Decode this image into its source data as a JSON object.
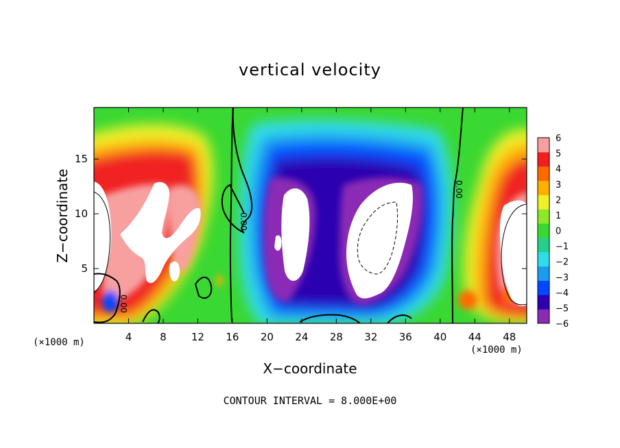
{
  "chart_data": {
    "type": "heatmap",
    "title": "vertical velocity",
    "xlabel": "X−coordinate",
    "ylabel": "Z−coordinate",
    "x_unit_label_left": "(×1000 m)",
    "x_unit_label_right": "(×1000 m)",
    "footer": "CONTOUR INTERVAL = 8.000E+00",
    "xlim": [
      0,
      50
    ],
    "ylim": [
      0,
      19.7
    ],
    "x_ticks": [
      4,
      8,
      12,
      16,
      20,
      24,
      28,
      32,
      36,
      40,
      44,
      48
    ],
    "y_ticks": [
      5,
      10,
      15
    ],
    "colorbar": {
      "range": [
        -6,
        6
      ],
      "tick_values": [
        6,
        5,
        4,
        3,
        2,
        1,
        0,
        -1,
        -2,
        -3,
        -4,
        -5,
        -6
      ],
      "tick_labels": [
        "6",
        "5",
        "4",
        "3",
        "2",
        "1",
        "0",
        "−1",
        "−2",
        "−3",
        "−4",
        "−5",
        "−6"
      ],
      "colors": [
        "#8b2bb5",
        "#2b00b0",
        "#0048ff",
        "#1a9cf0",
        "#31dcea",
        "#25d08a",
        "#3ad832",
        "#8ee82a",
        "#eef02a",
        "#ffb000",
        "#ff6a00",
        "#f02020",
        "#f8a0a0"
      ]
    },
    "contour_labels": [
      "0.00",
      "0.00",
      "0.00"
    ],
    "grid": false,
    "legend": "colorbar-right"
  }
}
